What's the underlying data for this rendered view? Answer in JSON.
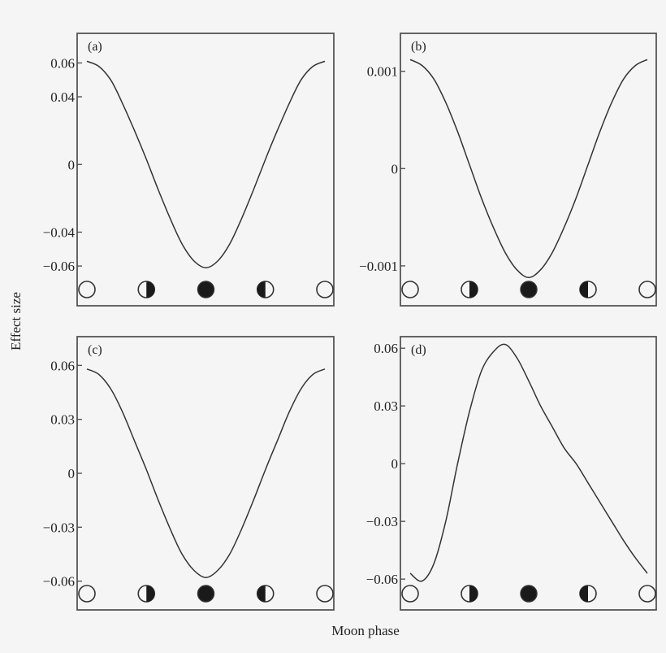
{
  "figure": {
    "xlabel": "Moon phase",
    "ylabel": "Effect size"
  },
  "moon_phases": [
    {
      "name": "full-moon",
      "phase": 0
    },
    {
      "name": "first-quarter",
      "phase": 0.25
    },
    {
      "name": "new-moon",
      "phase": 0.5
    },
    {
      "name": "last-quarter",
      "phase": 0.75
    },
    {
      "name": "full-moon",
      "phase": 1
    }
  ],
  "colors": {
    "background": "#f5f5f5",
    "frame": "#555555",
    "line": "#333333",
    "text": "#222222",
    "moon_dark": "#1a1a1a"
  },
  "chart_data": [
    {
      "panel": "(a)",
      "type": "line",
      "title": "",
      "xlabel": "Moon phase",
      "ylabel": "Effect size",
      "yticks": [
        0.06,
        0.04,
        0,
        -0.04,
        -0.06
      ],
      "ytick_labels": [
        "0.06",
        "0.04",
        "0",
        "−0.04",
        "−0.06"
      ],
      "ylim": [
        -0.0835,
        0.0775
      ],
      "x": [
        0,
        0.05,
        0.1,
        0.15,
        0.2,
        0.25,
        0.3,
        0.35,
        0.4,
        0.45,
        0.5,
        0.55,
        0.6,
        0.65,
        0.7,
        0.75,
        0.8,
        0.85,
        0.9,
        0.95,
        1
      ],
      "values": [
        0.061,
        0.058,
        0.05,
        0.036,
        0.02,
        0.003,
        -0.015,
        -0.032,
        -0.047,
        -0.057,
        -0.061,
        -0.057,
        -0.047,
        -0.032,
        -0.015,
        0.003,
        0.02,
        0.036,
        0.05,
        0.058,
        0.061
      ],
      "grid": false,
      "legend": "none"
    },
    {
      "panel": "(b)",
      "type": "line",
      "title": "",
      "xlabel": "Moon phase",
      "ylabel": "Effect size",
      "yticks": [
        0.001,
        0,
        -0.001
      ],
      "ytick_labels": [
        "0.001",
        "0",
        "−0.001"
      ],
      "ylim": [
        -0.00141,
        0.00139
      ],
      "x": [
        0,
        0.05,
        0.1,
        0.15,
        0.2,
        0.25,
        0.3,
        0.35,
        0.4,
        0.45,
        0.5,
        0.55,
        0.6,
        0.65,
        0.7,
        0.75,
        0.8,
        0.85,
        0.9,
        0.95,
        1
      ],
      "values": [
        0.00112,
        0.00106,
        0.00092,
        0.00068,
        0.00038,
        4e-05,
        -0.0003,
        -0.0006,
        -0.00086,
        -0.00104,
        -0.00112,
        -0.00104,
        -0.00086,
        -0.0006,
        -0.0003,
        4e-05,
        0.00038,
        0.00068,
        0.00092,
        0.00106,
        0.00112
      ],
      "grid": false,
      "legend": "none"
    },
    {
      "panel": "(c)",
      "type": "line",
      "title": "",
      "xlabel": "Moon phase",
      "ylabel": "Effect size",
      "yticks": [
        0.06,
        0.03,
        0,
        -0.03,
        -0.06
      ],
      "ytick_labels": [
        "0.06",
        "0.03",
        "0",
        "−0.03",
        "−0.06"
      ],
      "ylim": [
        -0.076,
        0.076
      ],
      "x": [
        0,
        0.05,
        0.1,
        0.15,
        0.2,
        0.25,
        0.3,
        0.35,
        0.4,
        0.45,
        0.5,
        0.55,
        0.6,
        0.65,
        0.7,
        0.75,
        0.8,
        0.85,
        0.9,
        0.95,
        1
      ],
      "values": [
        0.058,
        0.055,
        0.047,
        0.034,
        0.018,
        0.002,
        -0.015,
        -0.031,
        -0.045,
        -0.054,
        -0.058,
        -0.054,
        -0.045,
        -0.031,
        -0.015,
        0.002,
        0.018,
        0.034,
        0.047,
        0.055,
        0.058
      ],
      "grid": false,
      "legend": "none"
    },
    {
      "panel": "(d)",
      "type": "line",
      "title": "",
      "xlabel": "Moon phase",
      "ylabel": "Effect size",
      "yticks": [
        0.06,
        0.03,
        0,
        -0.03,
        -0.06
      ],
      "ytick_labels": [
        "0.06",
        "0.03",
        "0",
        "−0.03",
        "−0.06"
      ],
      "ylim": [
        -0.076,
        0.066
      ],
      "x": [
        0,
        0.05,
        0.1,
        0.15,
        0.2,
        0.25,
        0.3,
        0.35,
        0.4,
        0.45,
        0.5,
        0.55,
        0.6,
        0.65,
        0.7,
        0.75,
        0.8,
        0.85,
        0.9,
        0.95,
        1
      ],
      "values": [
        -0.057,
        -0.061,
        -0.052,
        -0.03,
        0.0,
        0.027,
        0.048,
        0.058,
        0.062,
        0.055,
        0.043,
        0.03,
        0.019,
        0.008,
        0.0,
        -0.01,
        -0.02,
        -0.03,
        -0.04,
        -0.049,
        -0.057
      ],
      "grid": false,
      "legend": "none"
    }
  ]
}
